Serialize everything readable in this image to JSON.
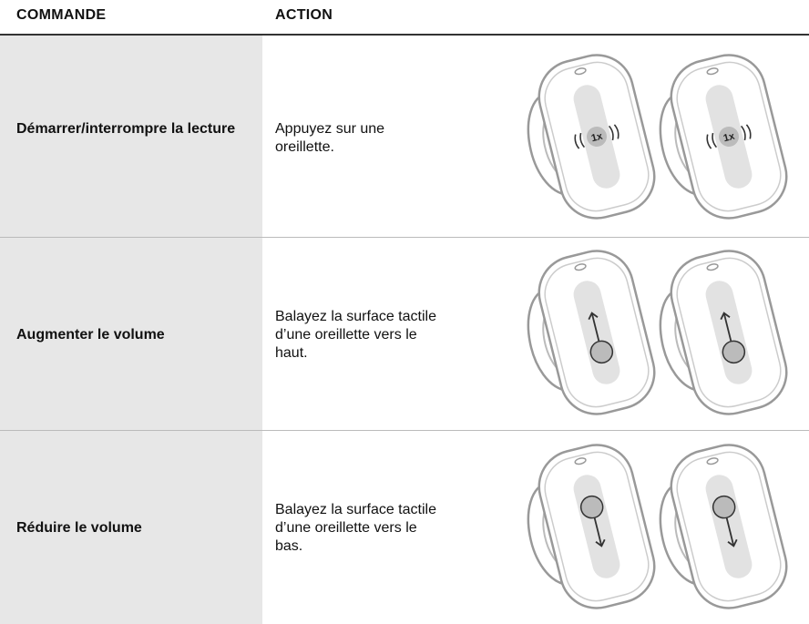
{
  "table": {
    "headers": [
      "COMMANDE",
      "ACTION"
    ],
    "rows": [
      {
        "command": "Démarrer/interrompre la lecture",
        "action": "Appuyez sur une oreillette.",
        "tap_label": "1x"
      },
      {
        "command": "Augmenter le volume",
        "action": "Balayez la surface tactile d’une oreillette vers le haut."
      },
      {
        "command": "Réduire le volume",
        "action": "Balayez la surface tactile d’une oreillette vers le bas."
      }
    ]
  }
}
